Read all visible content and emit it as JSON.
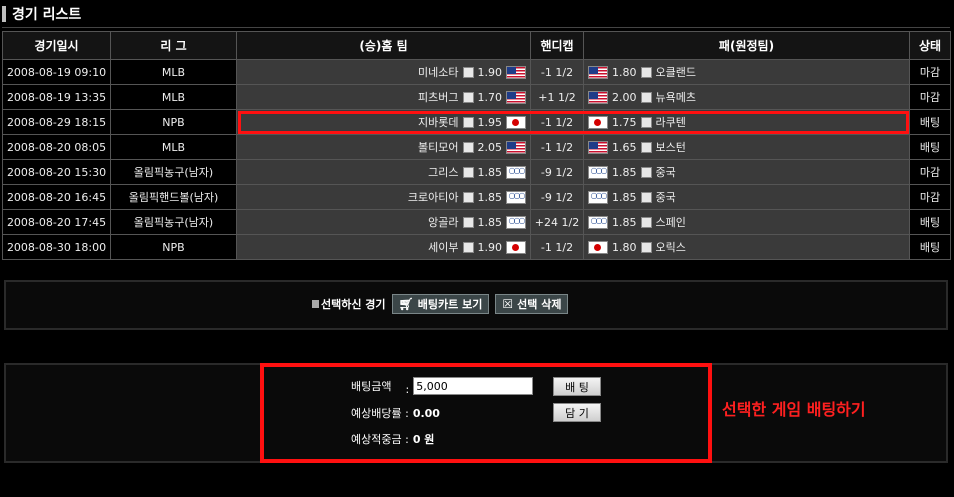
{
  "page": {
    "title": "경기 리스트"
  },
  "table": {
    "headers": [
      "경기일시",
      "리 그",
      "(승)홈 팀",
      "핸디캡",
      "패(원정팀)",
      "상태"
    ],
    "rows": [
      {
        "datetime": "2008-08-19 09:10",
        "league": "MLB",
        "home": "미네소타",
        "home_odds": "1.90",
        "handicap": "-1 1/2",
        "away_odds": "1.80",
        "away": "오클랜드",
        "status": "마감",
        "flag": "us"
      },
      {
        "datetime": "2008-08-19 13:35",
        "league": "MLB",
        "home": "피츠버그",
        "home_odds": "1.70",
        "handicap": "+1 1/2",
        "away_odds": "2.00",
        "away": "뉴욕메츠",
        "status": "마감",
        "flag": "us"
      },
      {
        "datetime": "2008-08-29 18:15",
        "league": "NPB",
        "home": "지바롯데",
        "home_odds": "1.95",
        "handicap": "-1 1/2",
        "away_odds": "1.75",
        "away": "라쿠텐",
        "status": "배팅",
        "flag": "jp"
      },
      {
        "datetime": "2008-08-20 08:05",
        "league": "MLB",
        "home": "볼티모어",
        "home_odds": "2.05",
        "handicap": "-1 1/2",
        "away_odds": "1.65",
        "away": "보스턴",
        "status": "배팅",
        "flag": "us"
      },
      {
        "datetime": "2008-08-20 15:30",
        "league": "올림픽농구(남자)",
        "home": "그리스",
        "home_odds": "1.85",
        "handicap": "-9 1/2",
        "away_odds": "1.85",
        "away": "중국",
        "status": "마감",
        "flag": "ol"
      },
      {
        "datetime": "2008-08-20 16:45",
        "league": "올림픽핸드볼(남자)",
        "home": "크로아티아",
        "home_odds": "1.85",
        "handicap": "-9 1/2",
        "away_odds": "1.85",
        "away": "중국",
        "status": "마감",
        "flag": "ol"
      },
      {
        "datetime": "2008-08-20 17:45",
        "league": "올림픽농구(남자)",
        "home": "앙골라",
        "home_odds": "1.85",
        "handicap": "+24 1/2",
        "away_odds": "1.85",
        "away": "스페인",
        "status": "배팅",
        "flag": "ol"
      },
      {
        "datetime": "2008-08-30 18:00",
        "league": "NPB",
        "home": "세이부",
        "home_odds": "1.90",
        "handicap": "-1 1/2",
        "away_odds": "1.80",
        "away": "오릭스",
        "status": "배팅",
        "flag": "jp"
      }
    ],
    "highlighted_row": 2
  },
  "selection": {
    "label": "선택하신 경기",
    "cart_button": "배팅카트 보기",
    "delete_button": "선택 삭제",
    "cart_icon": "cart-icon",
    "delete_icon": "trash-icon"
  },
  "bet": {
    "amount_label": "배팅금액",
    "amount_sep": ":",
    "amount_value": "5,000",
    "bet_button": "배 팅",
    "ratio_label": "예상배당률 :",
    "ratio_value": "0.00",
    "save_button": "담 기",
    "payout_label": "예상적중금 :",
    "payout_value": "0 원",
    "caption": "선택한 게임 배팅하기"
  },
  "colors": {
    "highlight": "#ff1010",
    "caption": "#ff2020",
    "cell_dark": "#3a3a3a"
  }
}
